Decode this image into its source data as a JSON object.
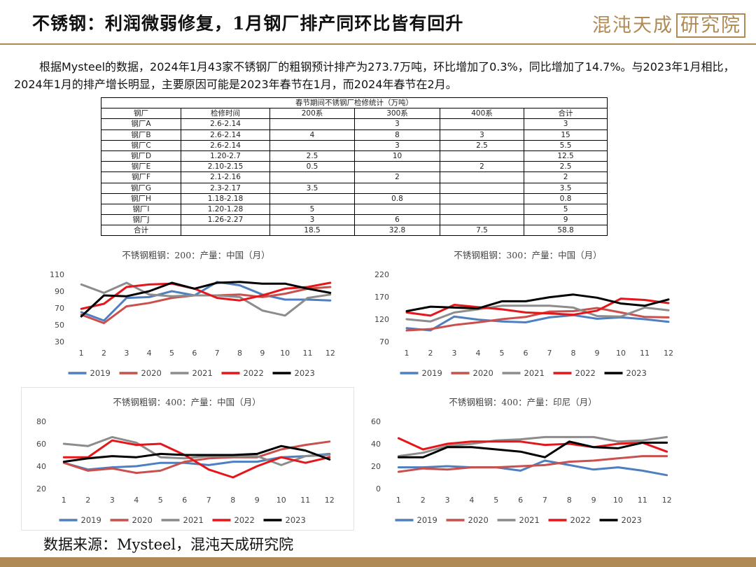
{
  "header": {
    "title": "不锈钢：利润微弱修复，1月钢厂排产同环比皆有回升",
    "logo_text": "混沌天成",
    "logo_boxed_text": "研究院"
  },
  "intro": "根据Mysteel的数据，2024年1月43家不锈钢厂的粗钢预计排产为273.7万吨，环比增加了0.3%，同比增加了14.7%。与2023年1月相比，2024年1月的排产增长明显，主要原因可能是2023年春节在1月，而2024年春节在2月。",
  "table": {
    "caption": "春节期间不锈钢厂检修统计（万吨）",
    "headers": [
      "钢厂",
      "检修时间",
      "200系",
      "300系",
      "400系",
      "合计"
    ],
    "rows": [
      [
        "钢厂A",
        "2.6-2.14",
        "",
        "3",
        "",
        "3"
      ],
      [
        "钢厂B",
        "2.6-2.14",
        "4",
        "8",
        "3",
        "15"
      ],
      [
        "钢厂C",
        "2.6-2.14",
        "",
        "3",
        "2.5",
        "5.5"
      ],
      [
        "钢厂D",
        "1.20-2.7",
        "2.5",
        "10",
        "",
        "12.5"
      ],
      [
        "钢厂E",
        "2.10-2.15",
        "0.5",
        "",
        "2",
        "2.5"
      ],
      [
        "钢厂F",
        "2.1-2.16",
        "",
        "2",
        "",
        "2"
      ],
      [
        "钢厂G",
        "2.3-2.17",
        "3.5",
        "",
        "",
        "3.5"
      ],
      [
        "钢厂H",
        "1.18-2.18",
        "",
        "0.8",
        "",
        "0.8"
      ],
      [
        "钢厂I",
        "1.20-1.28",
        "5",
        "",
        "",
        "5"
      ],
      [
        "钢厂J",
        "1.26-2.27",
        "3",
        "6",
        "",
        "9"
      ],
      [
        "合计",
        "",
        "18.5",
        "32.8",
        "7.5",
        "58.8"
      ]
    ]
  },
  "source": "数据来源：Mysteel，混沌天成研究院",
  "chart_data": [
    {
      "type": "line",
      "title": "不锈钢粗钢：200：产量：中国（月）",
      "x": [
        1,
        2,
        3,
        4,
        5,
        6,
        7,
        8,
        9,
        10,
        11,
        12
      ],
      "ylim": [
        30,
        110
      ],
      "yticks": [
        30,
        50,
        70,
        90,
        110
      ],
      "grid": false,
      "legend": "bottom",
      "series": [
        {
          "name": "2019",
          "color": "#4e7fc0",
          "values": [
            65,
            55,
            82,
            83,
            90,
            85,
            101,
            97,
            86,
            80,
            80,
            79
          ]
        },
        {
          "name": "2020",
          "color": "#c9504c",
          "values": [
            62,
            52,
            72,
            76,
            82,
            85,
            85,
            86,
            83,
            87,
            93,
            95
          ]
        },
        {
          "name": "2021",
          "color": "#8c8c8c",
          "values": [
            98,
            88,
            100,
            86,
            84,
            85,
            85,
            83,
            67,
            61,
            82,
            86
          ]
        },
        {
          "name": "2022",
          "color": "#e5161a",
          "values": [
            69,
            75,
            95,
            98,
            99,
            93,
            82,
            79,
            85,
            93,
            95,
            100
          ]
        },
        {
          "name": "2023",
          "color": "#000000",
          "values": [
            60,
            85,
            84,
            90,
            100,
            93,
            100,
            101,
            99,
            99,
            93,
            88
          ]
        }
      ]
    },
    {
      "type": "line",
      "title": "不锈钢粗钢：300：产量：中国（月）",
      "x": [
        1,
        2,
        3,
        4,
        5,
        6,
        7,
        8,
        9,
        10,
        11,
        12
      ],
      "ylim": [
        70,
        220
      ],
      "yticks": [
        70,
        120,
        170,
        220
      ],
      "grid": false,
      "legend": "bottom",
      "series": [
        {
          "name": "2019",
          "color": "#4e7fc0",
          "values": [
            100,
            95,
            126,
            119,
            115,
            113,
            124,
            129,
            121,
            124,
            120,
            114
          ]
        },
        {
          "name": "2020",
          "color": "#c9504c",
          "values": [
            95,
            98,
            107,
            113,
            120,
            125,
            137,
            138,
            145,
            135,
            125,
            124
          ]
        },
        {
          "name": "2021",
          "color": "#8c8c8c",
          "values": [
            120,
            115,
            135,
            142,
            150,
            150,
            150,
            146,
            127,
            126,
            146,
            140
          ]
        },
        {
          "name": "2022",
          "color": "#e5161a",
          "values": [
            135,
            128,
            152,
            147,
            142,
            135,
            133,
            130,
            139,
            166,
            163,
            156
          ]
        },
        {
          "name": "2023",
          "color": "#000000",
          "values": [
            138,
            148,
            146,
            144,
            160,
            160,
            169,
            175,
            168,
            155,
            150,
            164
          ]
        }
      ]
    },
    {
      "type": "line",
      "title": "不锈钢粗钢：400：产量：中国（月）",
      "x": [
        1,
        2,
        3,
        4,
        5,
        6,
        7,
        8,
        9,
        10,
        11,
        12
      ],
      "ylim": [
        20,
        80
      ],
      "yticks": [
        20,
        40,
        60,
        80
      ],
      "grid": false,
      "legend": "bottom",
      "series": [
        {
          "name": "2019",
          "color": "#4e7fc0",
          "values": [
            43,
            37,
            39,
            40,
            43,
            43,
            41,
            44,
            44,
            48,
            49,
            51
          ]
        },
        {
          "name": "2020",
          "color": "#c9504c",
          "values": [
            43,
            36,
            38,
            34,
            36,
            44,
            47,
            48,
            48,
            55,
            59,
            62
          ]
        },
        {
          "name": "2021",
          "color": "#8c8c8c",
          "values": [
            60,
            58,
            66,
            61,
            48,
            47,
            49,
            49,
            49,
            41,
            49,
            50
          ]
        },
        {
          "name": "2022",
          "color": "#e5161a",
          "values": [
            48,
            48,
            63,
            59,
            60,
            50,
            37,
            30,
            40,
            48,
            43,
            48
          ]
        },
        {
          "name": "2023",
          "color": "#000000",
          "values": [
            44,
            47,
            49,
            48,
            51,
            50,
            50,
            50,
            51,
            58,
            54,
            46
          ]
        }
      ]
    },
    {
      "type": "line",
      "title": "不锈钢粗钢：400：产量：印尼（月）",
      "x": [
        1,
        2,
        3,
        4,
        5,
        6,
        7,
        8,
        9,
        10,
        11,
        12
      ],
      "ylim": [
        0,
        60
      ],
      "yticks": [
        0,
        20,
        40,
        60
      ],
      "grid": false,
      "legend": "bottom",
      "series": [
        {
          "name": "2019",
          "color": "#4e7fc0",
          "values": [
            19,
            19,
            20,
            19,
            19,
            16,
            25,
            21,
            17,
            19,
            16,
            12
          ]
        },
        {
          "name": "2020",
          "color": "#c9504c",
          "values": [
            15,
            18,
            17,
            19,
            19,
            20,
            21,
            24,
            25,
            27,
            29,
            29
          ]
        },
        {
          "name": "2021",
          "color": "#8c8c8c",
          "values": [
            29,
            32,
            38,
            40,
            43,
            44,
            46,
            46,
            46,
            42,
            43,
            46
          ]
        },
        {
          "name": "2022",
          "color": "#e5161a",
          "values": [
            45,
            35,
            40,
            42,
            42,
            42,
            39,
            40,
            37,
            40,
            41,
            33
          ]
        },
        {
          "name": "2023",
          "color": "#000000",
          "values": [
            28,
            28,
            37,
            37,
            35,
            33,
            28,
            42,
            37,
            36,
            41,
            41
          ]
        }
      ]
    }
  ]
}
